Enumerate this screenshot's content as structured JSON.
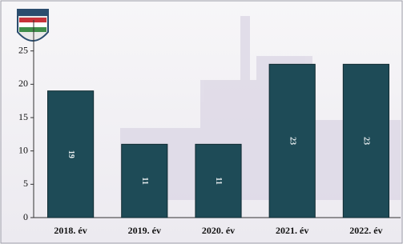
{
  "chart_data": {
    "type": "bar",
    "categories": [
      "2018. év",
      "2019. év",
      "2020. év",
      "2021. év",
      "2022. év"
    ],
    "values": [
      19,
      11,
      11,
      23,
      23
    ],
    "color": "#1e4b57",
    "ylim": [
      0,
      27
    ],
    "yticks": [
      0,
      5,
      10,
      15,
      20,
      25
    ],
    "grid": false
  }
}
